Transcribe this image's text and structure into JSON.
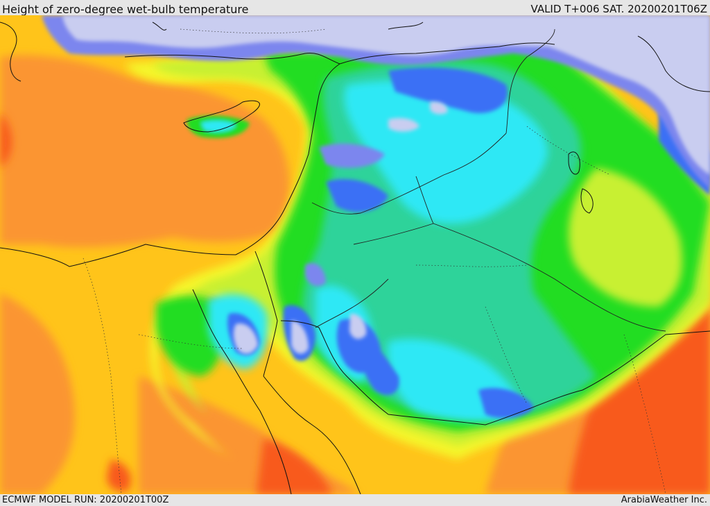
{
  "header": {
    "title": "Height of zero-degree wet-bulb temperature",
    "valid": "VALID T+006 SAT. 20200201T06Z"
  },
  "footer": {
    "model_run": "ECMWF MODEL RUN: 20200201T00Z",
    "credit": "ArabiaWeather Inc."
  },
  "colors": {
    "very_low": "#c9cdf0",
    "low_blue": "#7b86ee",
    "mid_blue": "#3b6ff5",
    "cyan": "#2ee8f5",
    "teal": "#2fd39a",
    "green": "#22dd22",
    "yellow_green": "#c8f030",
    "yellow": "#f5f52a",
    "amber": "#ffc41a",
    "orange": "#fb9530",
    "red_orange": "#f85a1a"
  }
}
